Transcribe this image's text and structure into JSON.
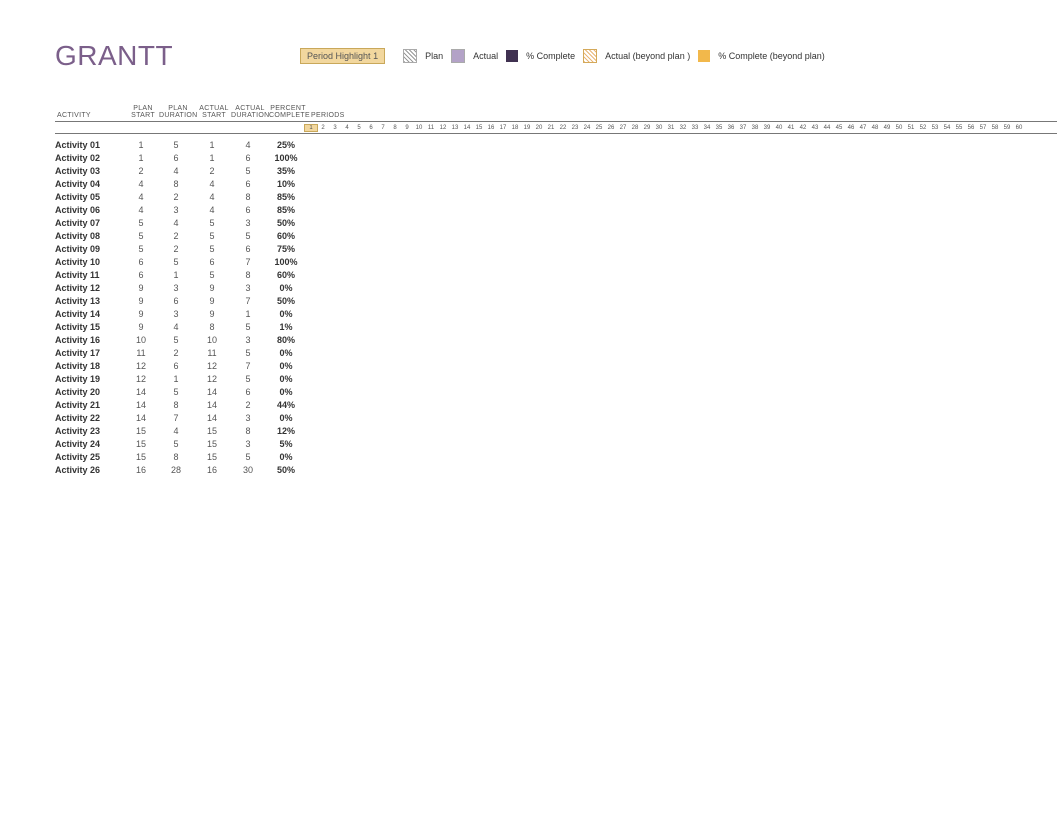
{
  "title": "GRANTT",
  "colors": {
    "title": "#7b5f8a",
    "highlight_bg": "#f2d79e",
    "highlight_border": "#c9a85a",
    "plan_hatch_fg": "#999999",
    "actual_fill": "#b3a2c7",
    "complete_fill": "#403151",
    "actual_beyond_fg": "#eab676",
    "complete_beyond_fill": "#f2b84b",
    "rule": "#777777",
    "text": "#555555",
    "background": "#ffffff"
  },
  "legend": {
    "highlight_label": "Period Highlight",
    "highlight_value": "1",
    "items": [
      {
        "key": "plan",
        "label": "Plan"
      },
      {
        "key": "actual",
        "label": "Actual"
      },
      {
        "key": "complete",
        "label": "% Complete"
      },
      {
        "key": "actualbeyond",
        "label": "Actual (beyond plan )"
      },
      {
        "key": "completebeyond",
        "label": "% Complete (beyond plan)"
      }
    ]
  },
  "columns": {
    "activity": "ACTIVITY",
    "plan_start": "PLAN\nSTART",
    "plan_duration": "PLAN\nDURATION",
    "actual_start": "ACTUAL\nSTART",
    "actual_duration": "ACTUAL\nDURATION",
    "percent_complete": "PERCENT\nCOMPLETE",
    "periods": "PERIODS"
  },
  "periods": {
    "count": 60,
    "highlighted": 1
  },
  "rows": [
    {
      "activity": "Activity 01",
      "ps": 1,
      "pd": 5,
      "as": 1,
      "ad": 4,
      "pc": "25%"
    },
    {
      "activity": "Activity 02",
      "ps": 1,
      "pd": 6,
      "as": 1,
      "ad": 6,
      "pc": "100%"
    },
    {
      "activity": "Activity 03",
      "ps": 2,
      "pd": 4,
      "as": 2,
      "ad": 5,
      "pc": "35%"
    },
    {
      "activity": "Activity 04",
      "ps": 4,
      "pd": 8,
      "as": 4,
      "ad": 6,
      "pc": "10%"
    },
    {
      "activity": "Activity 05",
      "ps": 4,
      "pd": 2,
      "as": 4,
      "ad": 8,
      "pc": "85%"
    },
    {
      "activity": "Activity 06",
      "ps": 4,
      "pd": 3,
      "as": 4,
      "ad": 6,
      "pc": "85%"
    },
    {
      "activity": "Activity 07",
      "ps": 5,
      "pd": 4,
      "as": 5,
      "ad": 3,
      "pc": "50%"
    },
    {
      "activity": "Activity 08",
      "ps": 5,
      "pd": 2,
      "as": 5,
      "ad": 5,
      "pc": "60%"
    },
    {
      "activity": "Activity 09",
      "ps": 5,
      "pd": 2,
      "as": 5,
      "ad": 6,
      "pc": "75%"
    },
    {
      "activity": "Activity 10",
      "ps": 6,
      "pd": 5,
      "as": 6,
      "ad": 7,
      "pc": "100%"
    },
    {
      "activity": "Activity 11",
      "ps": 6,
      "pd": 1,
      "as": 5,
      "ad": 8,
      "pc": "60%"
    },
    {
      "activity": "Activity 12",
      "ps": 9,
      "pd": 3,
      "as": 9,
      "ad": 3,
      "pc": "0%"
    },
    {
      "activity": "Activity 13",
      "ps": 9,
      "pd": 6,
      "as": 9,
      "ad": 7,
      "pc": "50%"
    },
    {
      "activity": "Activity 14",
      "ps": 9,
      "pd": 3,
      "as": 9,
      "ad": 1,
      "pc": "0%"
    },
    {
      "activity": "Activity 15",
      "ps": 9,
      "pd": 4,
      "as": 8,
      "ad": 5,
      "pc": "1%"
    },
    {
      "activity": "Activity 16",
      "ps": 10,
      "pd": 5,
      "as": 10,
      "ad": 3,
      "pc": "80%"
    },
    {
      "activity": "Activity 17",
      "ps": 11,
      "pd": 2,
      "as": 11,
      "ad": 5,
      "pc": "0%"
    },
    {
      "activity": "Activity 18",
      "ps": 12,
      "pd": 6,
      "as": 12,
      "ad": 7,
      "pc": "0%"
    },
    {
      "activity": "Activity 19",
      "ps": 12,
      "pd": 1,
      "as": 12,
      "ad": 5,
      "pc": "0%"
    },
    {
      "activity": "Activity 20",
      "ps": 14,
      "pd": 5,
      "as": 14,
      "ad": 6,
      "pc": "0%"
    },
    {
      "activity": "Activity 21",
      "ps": 14,
      "pd": 8,
      "as": 14,
      "ad": 2,
      "pc": "44%"
    },
    {
      "activity": "Activity 22",
      "ps": 14,
      "pd": 7,
      "as": 14,
      "ad": 3,
      "pc": "0%"
    },
    {
      "activity": "Activity 23",
      "ps": 15,
      "pd": 4,
      "as": 15,
      "ad": 8,
      "pc": "12%"
    },
    {
      "activity": "Activity 24",
      "ps": 15,
      "pd": 5,
      "as": 15,
      "ad": 3,
      "pc": "5%"
    },
    {
      "activity": "Activity 25",
      "ps": 15,
      "pd": 8,
      "as": 15,
      "ad": 5,
      "pc": "0%"
    },
    {
      "activity": "Activity 26",
      "ps": 16,
      "pd": 28,
      "as": 16,
      "ad": 30,
      "pc": "50%"
    }
  ]
}
